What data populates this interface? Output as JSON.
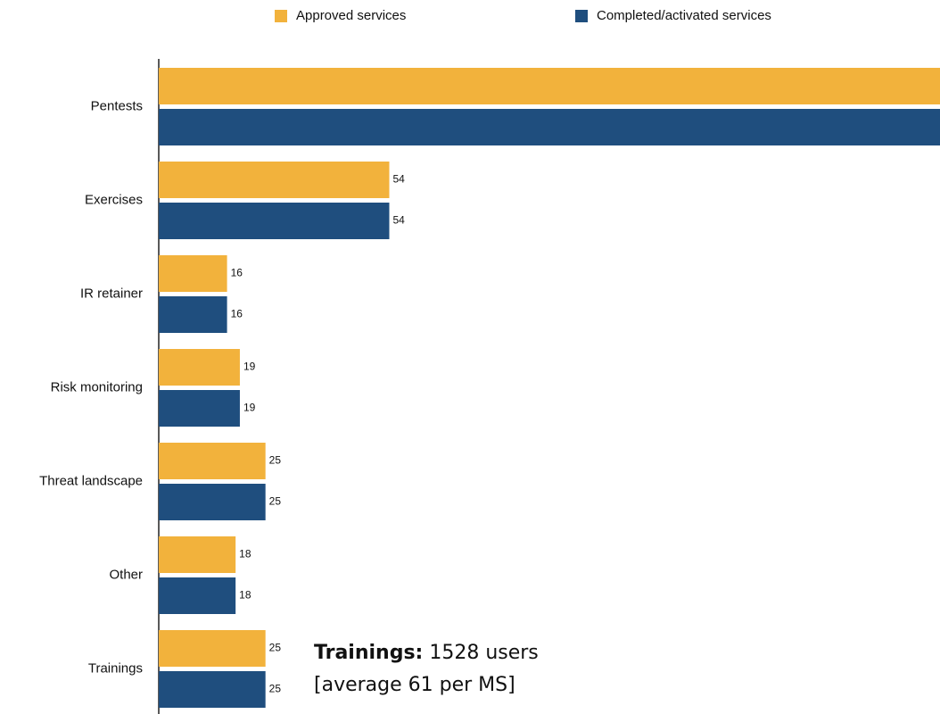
{
  "chart_data": {
    "type": "bar",
    "orientation": "horizontal",
    "categories": [
      "Pentests",
      "Exercises",
      "IR retainer",
      "Risk monitoring",
      "Threat landscape",
      "Other",
      "Trainings"
    ],
    "series": [
      {
        "name": "Approved services",
        "color": "#f2b23c",
        "values": [
          190,
          54,
          16,
          19,
          25,
          18,
          25
        ]
      },
      {
        "name": "Completed/activated services",
        "color": "#1f4e7e",
        "values": [
          190,
          54,
          16,
          19,
          25,
          18,
          25
        ]
      }
    ],
    "xlim": [
      0,
      183
    ],
    "legend": "top",
    "annotation": {
      "label": "Trainings:",
      "text": "1528 users",
      "note": "[average 61 per MS]"
    }
  }
}
